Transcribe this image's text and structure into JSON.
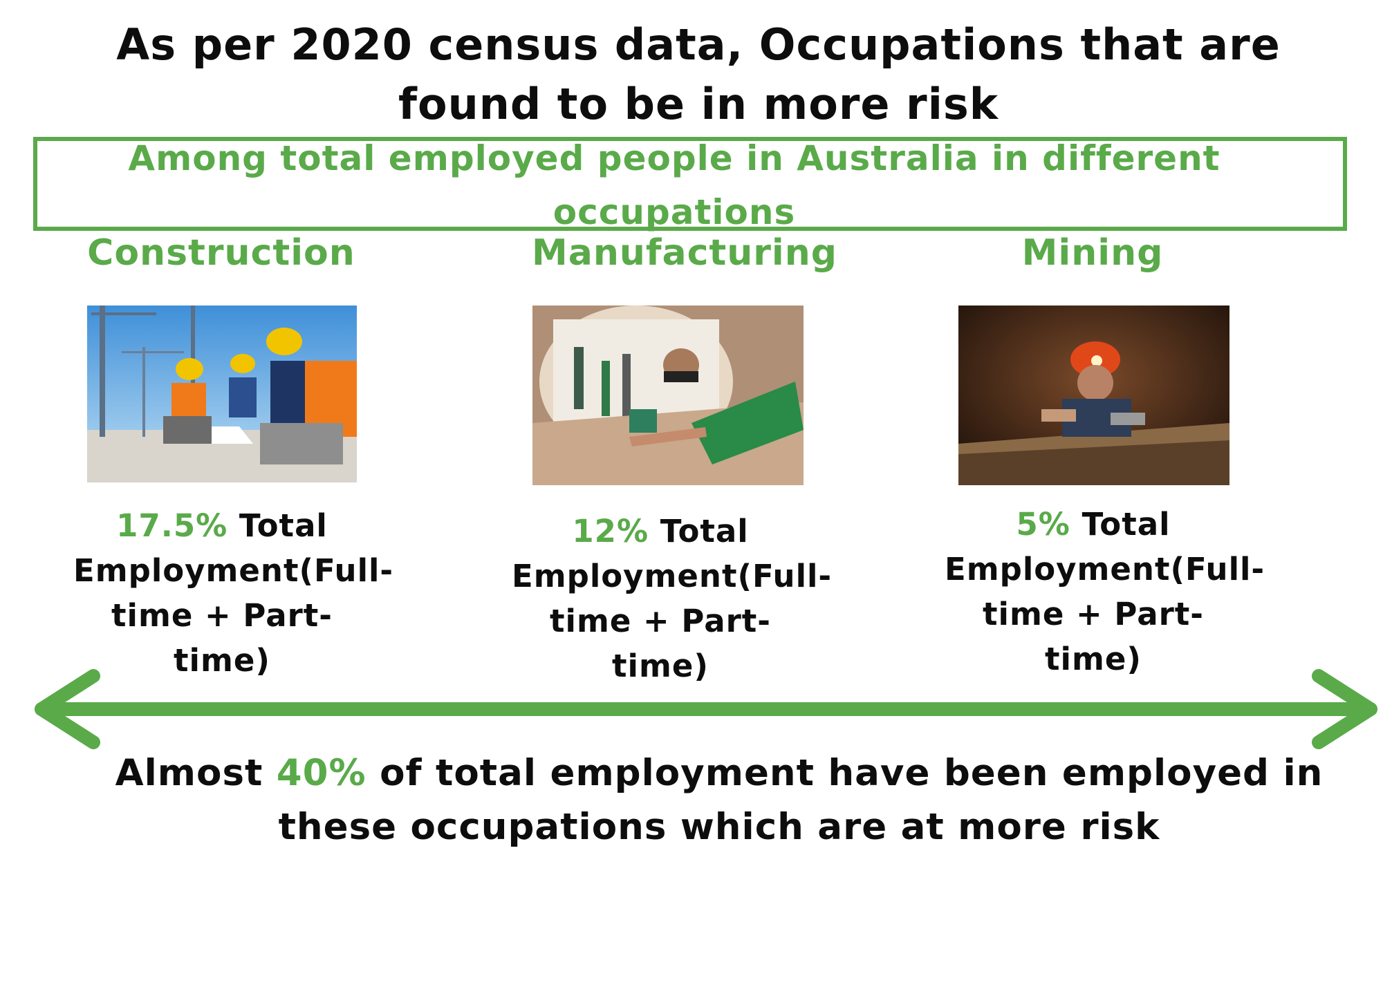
{
  "title": "As per 2020 census data, Occupations that are found to be in more risk",
  "subtitle": "Among total employed people in Australia in different occupations",
  "occupations": [
    {
      "name": "Construction",
      "percent": "17.5%",
      "stat_text": "Total Employment(Full-time + Part-time)"
    },
    {
      "name": "Manufacturing",
      "percent": "12%",
      "stat_text": "Total Employment(Full-time + Part-time)"
    },
    {
      "name": "Mining",
      "percent": "5%",
      "stat_text": "Total Employment(Full-time + Part-time)"
    }
  ],
  "conclusion": {
    "prefix": "Almost",
    "percent": "40%",
    "suffix": "of total employment have been employed in these occupations which are at more risk"
  },
  "colors": {
    "accent": "#5aaa4a",
    "text": "#0d0d0d"
  }
}
